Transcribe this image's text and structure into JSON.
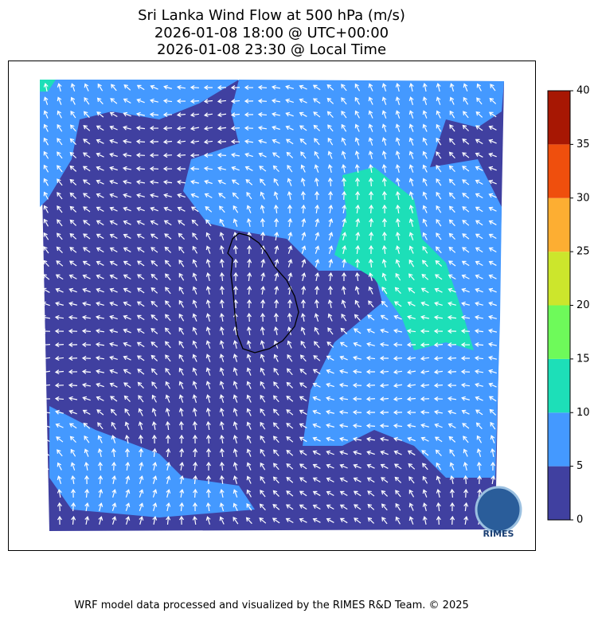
{
  "title": [
    "Sri Lanka Wind Flow at 500 hPa (m/s)",
    "2026-01-08 18:00 @ UTC+00:00",
    "2026-01-08 23:30 @ Local Time"
  ],
  "colorbar": {
    "ticks": [
      0,
      5,
      10,
      15,
      20,
      25,
      30,
      35,
      40
    ],
    "colors": [
      "#4040a0",
      "#4499ff",
      "#1ddfb8",
      "#6efa5a",
      "#cce62c",
      "#fdae32",
      "#ef4f0d",
      "#a71703"
    ]
  },
  "logo": "RIMES",
  "footer": "WRF model data processed and visualized by the RIMES R&D Team. © 2025"
}
